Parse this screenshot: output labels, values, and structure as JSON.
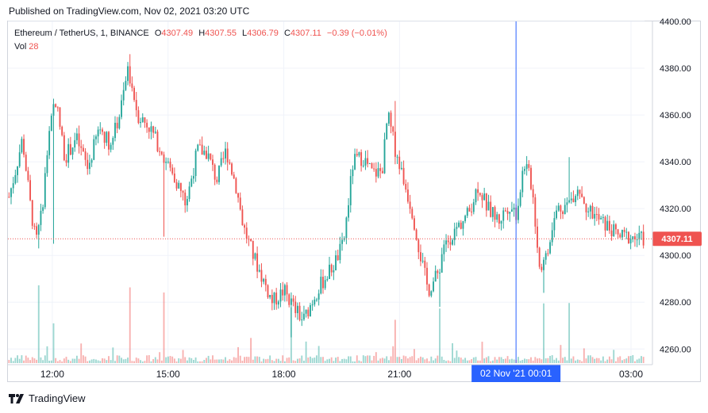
{
  "header": {
    "published": "Published on TradingView.com, Nov 02, 2021 03:20 UTC"
  },
  "legend": {
    "symbol": "Ethereum / TetherUS, 1, BINANCE",
    "o_label": "O",
    "o": "4307.49",
    "h_label": "H",
    "h": "4307.55",
    "l_label": "L",
    "l": "4306.79",
    "c_label": "C",
    "c": "4307.11",
    "change": "−0.39 (−0.01%)",
    "vol_label": "Vol",
    "vol": "28"
  },
  "footer": {
    "brand": "TradingView"
  },
  "colors": {
    "up": "#26a69a",
    "down": "#ef5350",
    "crosshair": "#2962ff",
    "last_price": "#ef5350"
  },
  "chart_data": {
    "type": "candlestick",
    "symbol": "Ethereum / TetherUS",
    "interval": "1",
    "exchange": "BINANCE",
    "y_ticks": [
      "4400.00",
      "4380.00",
      "4360.00",
      "4340.00",
      "4320.00",
      "4300.00",
      "4280.00",
      "4260.00"
    ],
    "ylim": [
      4254,
      4400
    ],
    "x_ticks": [
      {
        "label": "12:00",
        "hour": 12.0
      },
      {
        "label": "15:00",
        "hour": 15.0
      },
      {
        "label": "18:00",
        "hour": 18.0
      },
      {
        "label": "21:00",
        "hour": 21.0
      },
      {
        "label": "03:00",
        "hour": 27.0
      }
    ],
    "x_range_hours": [
      10.85,
      27.35
    ],
    "crosshair": {
      "label": "02 Nov '21   00:01",
      "hour": 24.02
    },
    "last_price": {
      "label": "4307.11",
      "value": 4307.11
    },
    "price_path": [
      [
        10.85,
        4325
      ],
      [
        11.0,
        4335
      ],
      [
        11.2,
        4350
      ],
      [
        11.4,
        4322
      ],
      [
        11.55,
        4305
      ],
      [
        11.7,
        4318
      ],
      [
        11.85,
        4345
      ],
      [
        12.05,
        4368
      ],
      [
        12.3,
        4342
      ],
      [
        12.6,
        4350
      ],
      [
        12.9,
        4337
      ],
      [
        13.2,
        4355
      ],
      [
        13.5,
        4347
      ],
      [
        13.75,
        4362
      ],
      [
        13.95,
        4380
      ],
      [
        14.2,
        4360
      ],
      [
        14.5,
        4355
      ],
      [
        14.8,
        4345
      ],
      [
        15.0,
        4338
      ],
      [
        15.2,
        4332
      ],
      [
        15.45,
        4322
      ],
      [
        15.75,
        4345
      ],
      [
        16.0,
        4344
      ],
      [
        16.25,
        4332
      ],
      [
        16.5,
        4345
      ],
      [
        16.75,
        4330
      ],
      [
        16.95,
        4312
      ],
      [
        17.2,
        4300
      ],
      [
        17.45,
        4290
      ],
      [
        17.7,
        4280
      ],
      [
        18.0,
        4285
      ],
      [
        18.25,
        4278
      ],
      [
        18.5,
        4272
      ],
      [
        18.8,
        4283
      ],
      [
        19.05,
        4290
      ],
      [
        19.3,
        4296
      ],
      [
        19.55,
        4305
      ],
      [
        19.8,
        4340
      ],
      [
        20.05,
        4342
      ],
      [
        20.3,
        4335
      ],
      [
        20.55,
        4336
      ],
      [
        20.7,
        4360
      ],
      [
        20.9,
        4345
      ],
      [
        21.15,
        4330
      ],
      [
        21.35,
        4318
      ],
      [
        21.55,
        4300
      ],
      [
        21.75,
        4285
      ],
      [
        22.0,
        4292
      ],
      [
        22.2,
        4305
      ],
      [
        22.5,
        4312
      ],
      [
        22.8,
        4318
      ],
      [
        23.05,
        4330
      ],
      [
        23.3,
        4320
      ],
      [
        23.6,
        4315
      ],
      [
        23.85,
        4322
      ],
      [
        24.05,
        4318
      ],
      [
        24.25,
        4340
      ],
      [
        24.45,
        4330
      ],
      [
        24.65,
        4295
      ],
      [
        24.85,
        4300
      ],
      [
        25.1,
        4320
      ],
      [
        25.4,
        4322
      ],
      [
        25.65,
        4330
      ],
      [
        25.9,
        4320
      ],
      [
        26.2,
        4315
      ],
      [
        26.45,
        4312
      ],
      [
        26.7,
        4308
      ],
      [
        27.0,
        4308
      ],
      [
        27.25,
        4307
      ]
    ],
    "spikes": [
      {
        "hour": 11.65,
        "type": "low",
        "value": 4303
      },
      {
        "hour": 12.0,
        "type": "low",
        "value": 4305
      },
      {
        "hour": 13.98,
        "type": "high",
        "value": 4386
      },
      {
        "hour": 14.9,
        "type": "low",
        "value": 4308
      },
      {
        "hour": 18.2,
        "type": "low",
        "value": 4265
      },
      {
        "hour": 20.9,
        "type": "high",
        "value": 4366
      },
      {
        "hour": 22.05,
        "type": "low",
        "value": 4278
      },
      {
        "hour": 24.75,
        "type": "low",
        "value": 4284
      },
      {
        "hour": 25.4,
        "type": "high",
        "value": 4342
      }
    ]
  }
}
